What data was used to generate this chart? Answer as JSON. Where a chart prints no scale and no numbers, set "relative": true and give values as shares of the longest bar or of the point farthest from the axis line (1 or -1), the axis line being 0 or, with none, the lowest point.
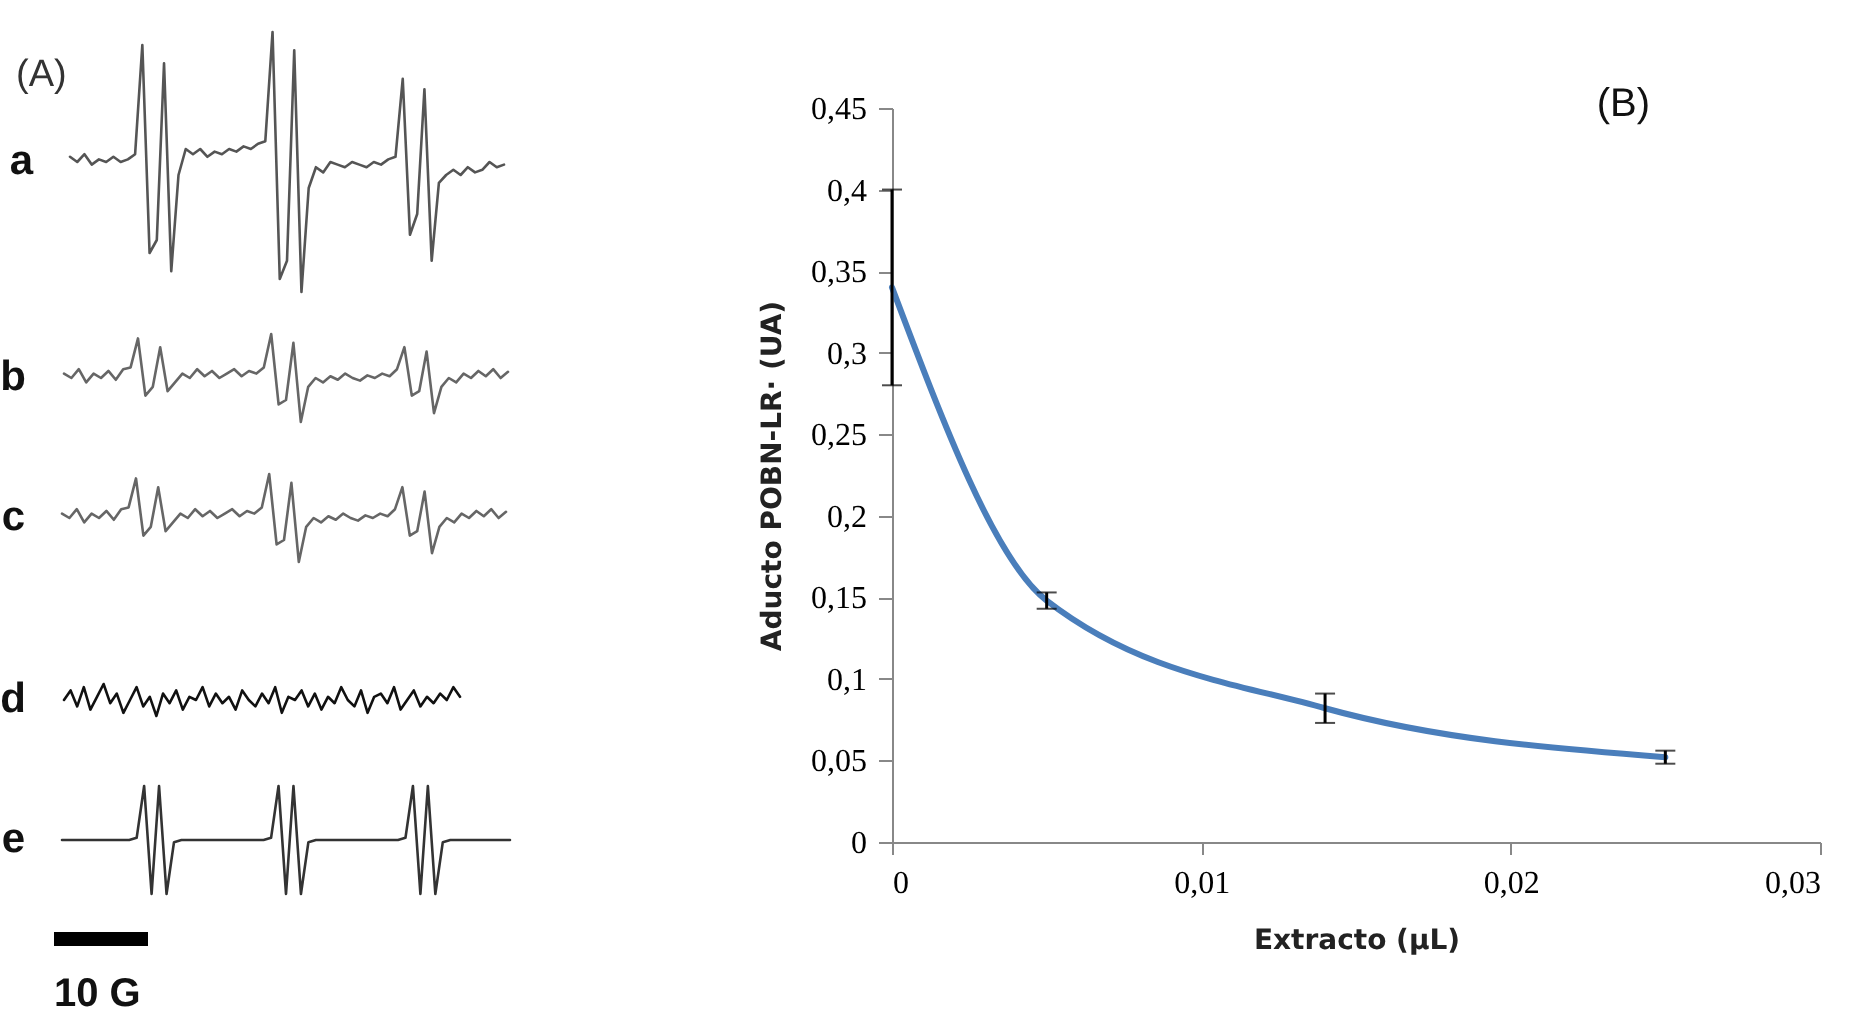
{
  "chart_data": [
    {
      "type": "line",
      "title": "a",
      "relative": true,
      "annotations": [
        "(A)"
      ],
      "categories": [
        null,
        null,
        null,
        null,
        null,
        null,
        null,
        null,
        null,
        null,
        null,
        null,
        null,
        null,
        null,
        null,
        null,
        null,
        null,
        null,
        null,
        null,
        null,
        null,
        null,
        null,
        null,
        null,
        null,
        null,
        null,
        null,
        null,
        null,
        null,
        null,
        null,
        null,
        null,
        null,
        null,
        null,
        null,
        null,
        null,
        null,
        null,
        null,
        null,
        null,
        null,
        null,
        null,
        null,
        null,
        null,
        null,
        null,
        null,
        null,
        null
      ],
      "series": [
        {
          "color": "#555555",
          "values": [
            0.52,
            0.5,
            0.53,
            0.49,
            0.51,
            0.5,
            0.52,
            0.5,
            0.51,
            0.53,
            0.95,
            0.15,
            0.2,
            0.88,
            0.08,
            0.45,
            0.55,
            0.53,
            0.55,
            0.52,
            0.54,
            0.53,
            0.55,
            0.54,
            0.56,
            0.55,
            0.57,
            0.58,
            1.0,
            0.05,
            0.12,
            0.93,
            0.0,
            0.4,
            0.48,
            0.46,
            0.5,
            0.49,
            0.48,
            0.5,
            0.49,
            0.48,
            0.5,
            0.49,
            0.51,
            0.52,
            0.82,
            0.22,
            0.3,
            0.78,
            0.12,
            0.42,
            0.45,
            0.47,
            0.45,
            0.48,
            0.46,
            0.47,
            0.5,
            0.48,
            0.49
          ]
        }
      ]
    },
    {
      "type": "line",
      "title": "b",
      "relative": true,
      "categories": [
        null,
        null,
        null,
        null,
        null,
        null,
        null,
        null,
        null,
        null,
        null,
        null,
        null,
        null,
        null,
        null,
        null,
        null,
        null,
        null,
        null,
        null,
        null,
        null,
        null,
        null,
        null,
        null,
        null,
        null,
        null,
        null,
        null,
        null,
        null,
        null,
        null,
        null,
        null,
        null,
        null,
        null,
        null,
        null,
        null,
        null,
        null,
        null,
        null,
        null,
        null,
        null,
        null,
        null,
        null,
        null,
        null,
        null,
        null,
        null,
        null
      ],
      "series": [
        {
          "color": "#666666",
          "values": [
            0.55,
            0.5,
            0.6,
            0.45,
            0.55,
            0.5,
            0.58,
            0.48,
            0.6,
            0.62,
            0.95,
            0.3,
            0.4,
            0.85,
            0.35,
            0.45,
            0.55,
            0.5,
            0.6,
            0.52,
            0.58,
            0.5,
            0.55,
            0.6,
            0.52,
            0.58,
            0.55,
            0.62,
            1.0,
            0.2,
            0.25,
            0.9,
            0.0,
            0.4,
            0.5,
            0.45,
            0.52,
            0.48,
            0.55,
            0.5,
            0.47,
            0.53,
            0.5,
            0.55,
            0.52,
            0.6,
            0.85,
            0.3,
            0.35,
            0.8,
            0.1,
            0.4,
            0.5,
            0.45,
            0.55,
            0.5,
            0.58,
            0.52,
            0.6,
            0.5,
            0.57
          ]
        }
      ]
    },
    {
      "type": "line",
      "title": "c",
      "relative": true,
      "categories": [
        null,
        null,
        null,
        null,
        null,
        null,
        null,
        null,
        null,
        null,
        null,
        null,
        null,
        null,
        null,
        null,
        null,
        null,
        null,
        null,
        null,
        null,
        null,
        null,
        null,
        null,
        null,
        null,
        null,
        null,
        null,
        null,
        null,
        null,
        null,
        null,
        null,
        null,
        null,
        null,
        null,
        null,
        null,
        null,
        null,
        null,
        null,
        null,
        null,
        null,
        null,
        null,
        null,
        null,
        null,
        null,
        null,
        null,
        null,
        null,
        null
      ],
      "series": [
        {
          "color": "#666666",
          "values": [
            0.55,
            0.5,
            0.6,
            0.45,
            0.55,
            0.5,
            0.58,
            0.48,
            0.6,
            0.62,
            0.95,
            0.3,
            0.4,
            0.85,
            0.35,
            0.45,
            0.55,
            0.5,
            0.6,
            0.52,
            0.58,
            0.5,
            0.55,
            0.6,
            0.52,
            0.58,
            0.55,
            0.62,
            1.0,
            0.2,
            0.25,
            0.9,
            0.0,
            0.4,
            0.5,
            0.45,
            0.52,
            0.48,
            0.55,
            0.5,
            0.47,
            0.53,
            0.5,
            0.55,
            0.52,
            0.6,
            0.85,
            0.3,
            0.35,
            0.8,
            0.1,
            0.4,
            0.5,
            0.45,
            0.55,
            0.5,
            0.58,
            0.52,
            0.6,
            0.5,
            0.57
          ]
        }
      ]
    },
    {
      "type": "line",
      "title": "d",
      "relative": true,
      "categories": [
        null,
        null,
        null,
        null,
        null,
        null,
        null,
        null,
        null,
        null,
        null,
        null,
        null,
        null,
        null,
        null,
        null,
        null,
        null,
        null,
        null,
        null,
        null,
        null,
        null,
        null,
        null,
        null,
        null,
        null,
        null,
        null,
        null,
        null,
        null,
        null,
        null,
        null,
        null,
        null,
        null,
        null,
        null,
        null,
        null,
        null,
        null,
        null,
        null,
        null,
        null,
        null,
        null,
        null,
        null,
        null,
        null,
        null,
        null,
        null,
        null
      ],
      "series": [
        {
          "color": "#111111",
          "values": [
            0.5,
            0.8,
            0.3,
            0.9,
            0.2,
            0.6,
            1.0,
            0.4,
            0.7,
            0.1,
            0.5,
            0.9,
            0.3,
            0.6,
            0.0,
            0.7,
            0.4,
            0.8,
            0.2,
            0.6,
            0.5,
            0.9,
            0.3,
            0.7,
            0.4,
            0.6,
            0.2,
            0.8,
            0.5,
            0.3,
            0.7,
            0.4,
            0.9,
            0.1,
            0.6,
            0.5,
            0.8,
            0.3,
            0.7,
            0.2,
            0.6,
            0.4,
            0.9,
            0.5,
            0.3,
            0.8,
            0.1,
            0.6,
            0.7,
            0.4,
            0.9,
            0.2,
            0.5,
            0.8,
            0.3,
            0.6,
            0.4,
            0.7,
            0.5,
            0.9,
            0.6
          ]
        }
      ]
    },
    {
      "type": "line",
      "title": "e",
      "relative": true,
      "annotations": [
        "10 G"
      ],
      "categories": [
        null,
        null,
        null,
        null,
        null,
        null,
        null,
        null,
        null,
        null,
        null,
        null,
        null,
        null,
        null,
        null,
        null,
        null,
        null,
        null,
        null,
        null,
        null,
        null,
        null,
        null,
        null,
        null,
        null,
        null,
        null,
        null,
        null,
        null,
        null,
        null,
        null,
        null,
        null,
        null,
        null,
        null,
        null,
        null,
        null,
        null,
        null,
        null,
        null,
        null,
        null,
        null,
        null,
        null,
        null,
        null,
        null,
        null,
        null,
        null,
        null
      ],
      "series": [
        {
          "color": "#333333",
          "values": [
            0.5,
            0.5,
            0.5,
            0.5,
            0.5,
            0.5,
            0.5,
            0.5,
            0.5,
            0.5,
            0.52,
            1,
            0,
            1,
            0,
            0.48,
            0.5,
            0.5,
            0.5,
            0.5,
            0.5,
            0.5,
            0.5,
            0.5,
            0.5,
            0.5,
            0.5,
            0.5,
            0.52,
            1,
            0,
            1,
            0,
            0.48,
            0.5,
            0.5,
            0.5,
            0.5,
            0.5,
            0.5,
            0.5,
            0.5,
            0.5,
            0.5,
            0.5,
            0.5,
            0.52,
            1,
            0,
            1,
            0,
            0.48,
            0.5,
            0.5,
            0.5,
            0.5,
            0.5,
            0.5,
            0.5,
            0.5,
            0.5
          ]
        }
      ]
    },
    {
      "type": "line",
      "title": "(B)",
      "xlabel": "Extracto  (µL)",
      "ylabel": "Aducto POBN-LR· (UA)",
      "x": [
        0,
        0.005,
        0.014,
        0.025
      ],
      "series": [
        {
          "color": "#4a7ebb",
          "values": [
            0.34,
            0.148,
            0.082,
            0.052
          ],
          "errors": [
            0.06,
            0.005,
            0.009,
            0.004
          ]
        }
      ],
      "xlim": [
        0,
        0.03
      ],
      "xticks": [
        0,
        {
          "value": 0.01,
          "label": "0,01"
        },
        {
          "value": 0.02,
          "label": "0,02"
        },
        {
          "value": 0.03,
          "label": "0,03"
        }
      ],
      "ylim": [
        0,
        0.45
      ],
      "yticks": [
        0,
        {
          "value": 0.05,
          "label": "0,05"
        },
        {
          "value": 0.1,
          "label": "0,1"
        },
        {
          "value": 0.15,
          "label": "0,15"
        },
        {
          "value": 0.2,
          "label": "0,2"
        },
        {
          "value": 0.25,
          "label": "0,25"
        },
        {
          "value": 0.3,
          "label": "0,3"
        },
        {
          "value": 0.35,
          "label": "0,35"
        },
        {
          "value": 0.4,
          "label": "0,4"
        },
        {
          "value": 0.45,
          "label": "0,45"
        }
      ],
      "grid": false,
      "marker": "none",
      "line_style": "solid"
    }
  ]
}
